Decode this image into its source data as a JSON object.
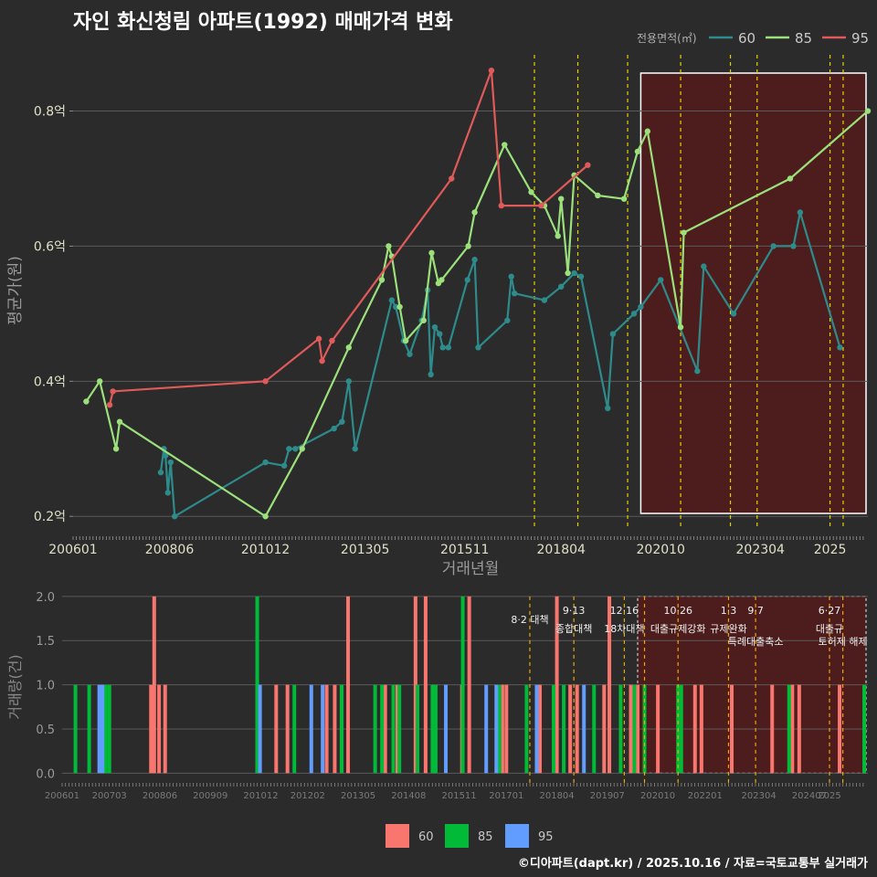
{
  "title": "자인 화신청림 아파트(1992) 매매가격 변화",
  "footer": "©디아파트(dapt.kr) / 2025.10.16 / 자료=국토교통부 실거래가",
  "colors": {
    "s60": "#2e8b8b",
    "s85": "#9be07a",
    "s95": "#e05a5a",
    "bar60": "#f8766d",
    "bar85": "#00ba38",
    "bar95": "#619cff",
    "policy": "#e6d000",
    "policy_bottom": "#f0a800",
    "highlight": "#5a1a1a"
  },
  "chart_data": [
    {
      "type": "line",
      "title": "자인 화신청림 아파트(1992) 매매가격 변화",
      "xlabel": "거래년월",
      "ylabel": "평균가(원)",
      "ylim": [
        0.18,
        0.89
      ],
      "yticks": [
        0.2,
        0.4,
        0.6,
        0.8
      ],
      "yticklabels": [
        "0.2억",
        "0.4억",
        "0.6억",
        "0.8억"
      ],
      "xlim": [
        2006.0,
        2025.95
      ],
      "xticks": [
        2006.0,
        2008.42,
        2010.83,
        2013.33,
        2015.83,
        2018.25,
        2020.75,
        2023.25,
        2025.0
      ],
      "xticklabels": [
        "200601",
        "200806",
        "201012",
        "201305",
        "201511",
        "201804",
        "202010",
        "202304",
        "2025"
      ],
      "legend_title": "전용면적(㎡)",
      "legend_position": "top-right",
      "highlight_range": [
        2020.25,
        2025.95
      ],
      "policy_lines": [
        2017.58,
        2018.67,
        2019.92,
        2021.25,
        2022.5,
        2023.17,
        2025.0,
        2025.33
      ],
      "series": [
        {
          "name": "60",
          "points": [
            [
              2008.2,
              0.265
            ],
            [
              2008.28,
              0.3
            ],
            [
              2008.32,
              0.29
            ],
            [
              2008.38,
              0.235
            ],
            [
              2008.45,
              0.28
            ],
            [
              2008.55,
              0.2
            ],
            [
              2010.83,
              0.28
            ],
            [
              2011.3,
              0.275
            ],
            [
              2011.42,
              0.3
            ],
            [
              2011.58,
              0.3
            ],
            [
              2012.55,
              0.33
            ],
            [
              2012.75,
              0.34
            ],
            [
              2012.92,
              0.4
            ],
            [
              2013.08,
              0.3
            ],
            [
              2014.0,
              0.52
            ],
            [
              2014.1,
              0.51
            ],
            [
              2014.3,
              0.46
            ],
            [
              2014.45,
              0.44
            ],
            [
              2014.75,
              0.49
            ],
            [
              2014.9,
              0.535
            ],
            [
              2014.98,
              0.41
            ],
            [
              2015.08,
              0.48
            ],
            [
              2015.2,
              0.47
            ],
            [
              2015.28,
              0.45
            ],
            [
              2015.42,
              0.45
            ],
            [
              2015.9,
              0.55
            ],
            [
              2016.08,
              0.58
            ],
            [
              2016.17,
              0.45
            ],
            [
              2016.9,
              0.49
            ],
            [
              2017.0,
              0.555
            ],
            [
              2017.08,
              0.53
            ],
            [
              2017.83,
              0.52
            ],
            [
              2018.25,
              0.54
            ],
            [
              2018.58,
              0.56
            ],
            [
              2018.75,
              0.555
            ],
            [
              2019.42,
              0.36
            ],
            [
              2019.55,
              0.47
            ],
            [
              2020.08,
              0.5
            ],
            [
              2020.25,
              0.51
            ],
            [
              2020.75,
              0.55
            ],
            [
              2021.67,
              0.415
            ],
            [
              2021.83,
              0.57
            ],
            [
              2022.58,
              0.5
            ],
            [
              2023.58,
              0.6
            ],
            [
              2024.08,
              0.6
            ],
            [
              2024.25,
              0.65
            ],
            [
              2025.25,
              0.45
            ]
          ]
        },
        {
          "name": "85",
          "points": [
            [
              2006.33,
              0.37
            ],
            [
              2006.67,
              0.4
            ],
            [
              2007.08,
              0.3
            ],
            [
              2007.17,
              0.34
            ],
            [
              2010.83,
              0.2
            ],
            [
              2011.75,
              0.3
            ],
            [
              2012.92,
              0.45
            ],
            [
              2013.75,
              0.55
            ],
            [
              2013.92,
              0.6
            ],
            [
              2014.0,
              0.585
            ],
            [
              2014.2,
              0.51
            ],
            [
              2014.35,
              0.46
            ],
            [
              2014.8,
              0.49
            ],
            [
              2015.0,
              0.59
            ],
            [
              2015.17,
              0.545
            ],
            [
              2015.25,
              0.55
            ],
            [
              2015.92,
              0.6
            ],
            [
              2016.08,
              0.65
            ],
            [
              2016.83,
              0.75
            ],
            [
              2017.5,
              0.68
            ],
            [
              2017.83,
              0.66
            ],
            [
              2018.17,
              0.615
            ],
            [
              2018.25,
              0.67
            ],
            [
              2018.42,
              0.56
            ],
            [
              2018.58,
              0.705
            ],
            [
              2019.17,
              0.675
            ],
            [
              2019.83,
              0.67
            ],
            [
              2020.17,
              0.74
            ],
            [
              2020.42,
              0.77
            ],
            [
              2021.25,
              0.48
            ],
            [
              2021.33,
              0.62
            ],
            [
              2024.0,
              0.7
            ],
            [
              2025.95,
              0.8
            ]
          ]
        },
        {
          "name": "95",
          "points": [
            [
              2006.92,
              0.365
            ],
            [
              2007.0,
              0.385
            ],
            [
              2010.83,
              0.4
            ],
            [
              2012.17,
              0.463
            ],
            [
              2012.25,
              0.43
            ],
            [
              2012.5,
              0.46
            ],
            [
              2015.5,
              0.7
            ],
            [
              2016.5,
              0.86
            ],
            [
              2016.75,
              0.66
            ],
            [
              2017.75,
              0.66
            ],
            [
              2018.92,
              0.72
            ]
          ]
        }
      ]
    },
    {
      "type": "bar",
      "ylabel": "거래량(건)",
      "ylim": [
        -0.1,
        2.05
      ],
      "yticks": [
        0.0,
        0.5,
        1.0,
        1.5,
        2.0
      ],
      "yticklabels": [
        "0.0",
        "0.5",
        "1.0",
        "1.5",
        "2.0"
      ],
      "xlim": [
        2006.0,
        2025.95
      ],
      "xticks": [
        2006.0,
        2007.17,
        2008.42,
        2009.67,
        2010.92,
        2012.08,
        2013.33,
        2014.58,
        2015.83,
        2017.0,
        2018.25,
        2019.5,
        2020.75,
        2021.92,
        2023.25,
        2024.5,
        2025.0
      ],
      "xticklabels": [
        "200601",
        "200703",
        "200806",
        "200909",
        "201012",
        "201202",
        "201305",
        "201408",
        "201511",
        "201701",
        "201804",
        "201907",
        "202010",
        "202201",
        "202304",
        "202407",
        "2025"
      ],
      "highlight_range": [
        2020.25,
        2025.95
      ],
      "policy_lines": [
        {
          "x": 2017.58,
          "label_top": "",
          "label_bottom": "8·2 대책"
        },
        {
          "x": 2018.67,
          "label_top": "9·13",
          "label_bottom": "종합대책"
        },
        {
          "x": 2019.92,
          "label_top": "12·16",
          "label_bottom": "18차대책"
        },
        {
          "x": 2020.42,
          "label_top": "",
          "label_bottom": ""
        },
        {
          "x": 2021.25,
          "label_top": "10·26",
          "label_bottom": "대출규제강화"
        },
        {
          "x": 2022.5,
          "label_top": "1·3",
          "label_bottom": "규제완화"
        },
        {
          "x": 2023.17,
          "label_top": "9·7",
          "label_bottom": "특례대출축소"
        },
        {
          "x": 2025.0,
          "label_top": "6·27",
          "label_bottom": "대출규"
        },
        {
          "x": 2025.33,
          "label_top": "",
          "label_bottom": "토허제 해제"
        }
      ],
      "series": [
        {
          "name": "60",
          "bars": [
            [
              2008.2,
              1
            ],
            [
              2008.28,
              2
            ],
            [
              2008.4,
              1
            ],
            [
              2008.55,
              1
            ],
            [
              2010.83,
              1
            ],
            [
              2011.3,
              1
            ],
            [
              2011.58,
              1
            ],
            [
              2012.55,
              1
            ],
            [
              2012.75,
              1
            ],
            [
              2012.92,
              1
            ],
            [
              2013.08,
              2
            ],
            [
              2014.0,
              1
            ],
            [
              2014.3,
              1
            ],
            [
              2014.75,
              2
            ],
            [
              2015.0,
              2
            ],
            [
              2015.2,
              1
            ],
            [
              2015.9,
              1
            ],
            [
              2016.08,
              2
            ],
            [
              2016.9,
              1
            ],
            [
              2017.0,
              1
            ],
            [
              2017.83,
              1
            ],
            [
              2018.25,
              2
            ],
            [
              2018.58,
              1
            ],
            [
              2018.75,
              1
            ],
            [
              2019.42,
              1
            ],
            [
              2019.55,
              2
            ],
            [
              2020.08,
              1
            ],
            [
              2020.25,
              1
            ],
            [
              2020.75,
              1
            ],
            [
              2021.67,
              1
            ],
            [
              2021.83,
              1
            ],
            [
              2022.58,
              1
            ],
            [
              2023.58,
              1
            ],
            [
              2024.08,
              1
            ],
            [
              2024.25,
              1
            ],
            [
              2025.25,
              1
            ]
          ]
        },
        {
          "name": "85",
          "bars": [
            [
              2006.33,
              1
            ],
            [
              2006.67,
              1
            ],
            [
              2007.08,
              1
            ],
            [
              2007.17,
              1
            ],
            [
              2010.83,
              2
            ],
            [
              2011.75,
              1
            ],
            [
              2012.92,
              1
            ],
            [
              2013.75,
              1
            ],
            [
              2013.92,
              1
            ],
            [
              2014.2,
              1
            ],
            [
              2014.35,
              1
            ],
            [
              2014.8,
              1
            ],
            [
              2015.17,
              1
            ],
            [
              2015.25,
              1
            ],
            [
              2015.92,
              2
            ],
            [
              2016.83,
              1
            ],
            [
              2017.5,
              1
            ],
            [
              2018.17,
              1
            ],
            [
              2018.42,
              1
            ],
            [
              2019.17,
              1
            ],
            [
              2019.83,
              1
            ],
            [
              2020.17,
              1
            ],
            [
              2020.42,
              1
            ],
            [
              2021.25,
              1
            ],
            [
              2021.33,
              1
            ],
            [
              2024.0,
              1
            ],
            [
              2025.95,
              1
            ]
          ]
        },
        {
          "name": "95",
          "bars": [
            [
              2006.92,
              1
            ],
            [
              2007.0,
              1
            ],
            [
              2010.9,
              1
            ],
            [
              2012.17,
              1
            ],
            [
              2012.45,
              1
            ],
            [
              2015.5,
              1
            ],
            [
              2016.5,
              1
            ],
            [
              2016.75,
              1
            ],
            [
              2017.75,
              1
            ],
            [
              2018.92,
              1
            ]
          ]
        }
      ]
    }
  ],
  "bottom_legend": [
    {
      "name": "60"
    },
    {
      "name": "85"
    },
    {
      "name": "95"
    }
  ]
}
